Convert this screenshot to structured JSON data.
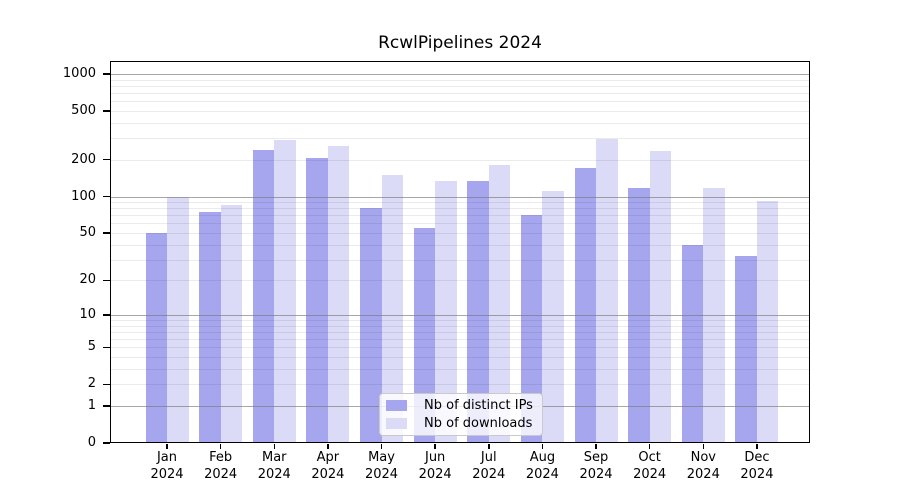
{
  "figure": {
    "title": "RcwlPipelines 2024",
    "background": "#ffffff"
  },
  "chart_data": {
    "type": "bar",
    "title": "RcwlPipelines 2024",
    "categories": [
      "Jan",
      "Feb",
      "Mar",
      "Apr",
      "May",
      "Jun",
      "Jul",
      "Aug",
      "Sep",
      "Oct",
      "Nov",
      "Dec"
    ],
    "x_year_label": "2024",
    "series": [
      {
        "name": "Nb of distinct IPs",
        "color": "#a6a6ef",
        "values": [
          50,
          75,
          240,
          205,
          80,
          55,
          134,
          70,
          172,
          118,
          40,
          32
        ]
      },
      {
        "name": "Nb of downloads",
        "color": "#dbdbf8",
        "values": [
          100,
          85,
          290,
          260,
          150,
          135,
          181,
          110,
          295,
          235,
          118,
          92
        ]
      }
    ],
    "y_scale": "log10(value+1)",
    "y_ticks": [
      0,
      1,
      2,
      5,
      10,
      20,
      50,
      100,
      200,
      500,
      1000
    ],
    "y_tick_labels": [
      "0",
      "1",
      "2",
      "5",
      "10",
      "20",
      "50",
      "100",
      "200",
      "500",
      "1000"
    ],
    "y_major_gridlines": [
      1,
      10,
      100,
      1000
    ],
    "y_minor_gridlines": [
      2,
      3,
      4,
      5,
      6,
      7,
      8,
      9,
      20,
      30,
      40,
      50,
      60,
      70,
      80,
      90,
      200,
      300,
      400,
      500,
      600,
      700,
      800,
      900
    ],
    "ylim": [
      0,
      1100
    ],
    "grid": true,
    "legend_position": "lower center"
  },
  "colors": {
    "bar_distinct_ips": "#a6a6ef",
    "bar_downloads": "#dbdbf8",
    "major_gridline": "rgba(120,120,120,0.65)",
    "minor_gridline": "rgba(0,0,0,0.08)",
    "axis": "#000000"
  }
}
